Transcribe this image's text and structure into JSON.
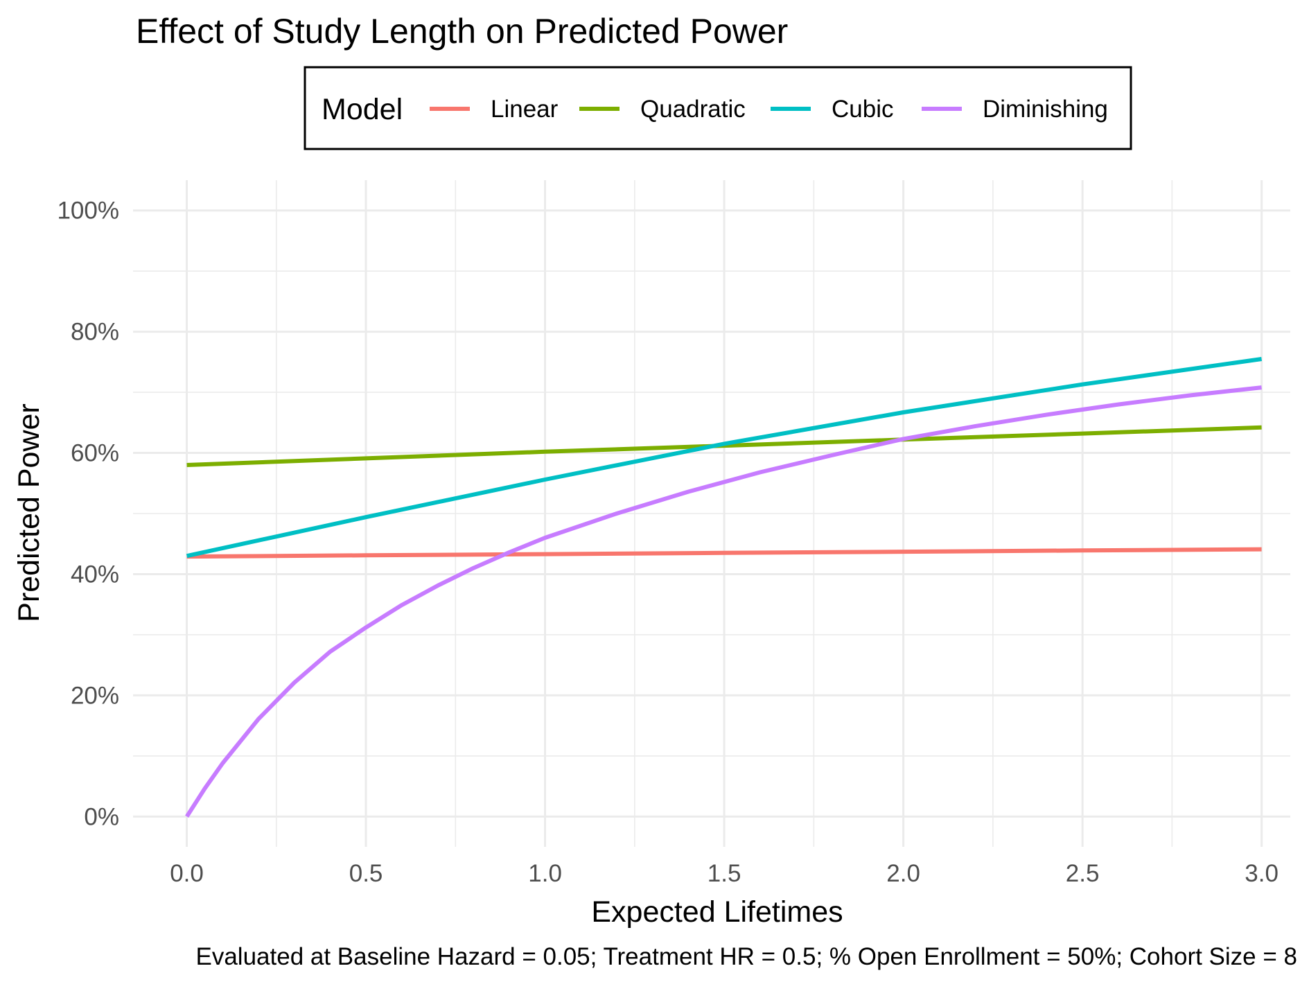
{
  "chart_data": {
    "type": "line",
    "title": "Effect of Study Length on Predicted Power",
    "xlabel": "Expected Lifetimes",
    "ylabel": "Predicted Power",
    "caption": "Evaluated at Baseline Hazard = 0.05; Treatment HR = 0.5; % Open Enrollment = 50%; Cohort Size = 8",
    "xlim": [
      -0.15,
      3.08
    ],
    "ylim": [
      -0.05,
      1.05
    ],
    "x_ticks": [
      0.0,
      0.5,
      1.0,
      1.5,
      2.0,
      2.5,
      3.0
    ],
    "x_tick_labels": [
      "0.0",
      "0.5",
      "1.0",
      "1.5",
      "2.0",
      "2.5",
      "3.0"
    ],
    "y_ticks": [
      0,
      0.2,
      0.4,
      0.6,
      0.8,
      1.0
    ],
    "y_tick_labels": [
      "0%",
      "20%",
      "40%",
      "60%",
      "80%",
      "100%"
    ],
    "grid": true,
    "legend": {
      "title": "Model",
      "position": "top"
    },
    "series": [
      {
        "name": "Linear",
        "color": "#F8766D",
        "x": [
          0,
          0.5,
          1.0,
          1.5,
          2.0,
          2.5,
          3.0
        ],
        "y": [
          0.429,
          0.431,
          0.433,
          0.435,
          0.437,
          0.439,
          0.441
        ]
      },
      {
        "name": "Quadratic",
        "color": "#7CAE00",
        "x": [
          0,
          0.5,
          1.0,
          1.5,
          2.0,
          2.5,
          3.0
        ],
        "y": [
          0.58,
          0.591,
          0.602,
          0.612,
          0.622,
          0.632,
          0.642
        ]
      },
      {
        "name": "Cubic",
        "color": "#00BFC4",
        "x": [
          0,
          0.5,
          1.0,
          1.5,
          2.0,
          2.5,
          3.0
        ],
        "y": [
          0.43,
          0.494,
          0.556,
          0.615,
          0.667,
          0.713,
          0.755
        ]
      },
      {
        "name": "Diminishing",
        "color": "#C77CFF",
        "x": [
          0,
          0.05,
          0.1,
          0.2,
          0.3,
          0.4,
          0.5,
          0.6,
          0.7,
          0.8,
          0.9,
          1.0,
          1.2,
          1.4,
          1.6,
          1.8,
          2.0,
          2.2,
          2.4,
          2.6,
          2.8,
          3.0
        ],
        "y": [
          0.0,
          0.046,
          0.088,
          0.161,
          0.221,
          0.272,
          0.312,
          0.349,
          0.381,
          0.41,
          0.436,
          0.46,
          0.5,
          0.536,
          0.568,
          0.596,
          0.623,
          0.644,
          0.663,
          0.68,
          0.695,
          0.708
        ]
      }
    ]
  }
}
